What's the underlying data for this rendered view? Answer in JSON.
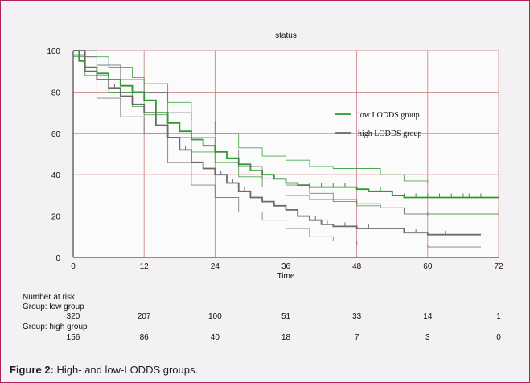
{
  "caption": {
    "label": "Figure 2:",
    "text": " High- and low-LODDS groups."
  },
  "chart_data": {
    "type": "line",
    "subtype": "kaplan-meier",
    "title": "status",
    "xlabel": "Time",
    "ylabel": "",
    "xlim": [
      0,
      72
    ],
    "ylim": [
      0,
      100
    ],
    "xticks": [
      0,
      12,
      24,
      36,
      48,
      60,
      72
    ],
    "yticks": [
      0,
      20,
      40,
      60,
      80,
      100
    ],
    "grid": true,
    "grid_color": "#c8787c",
    "legend_position": "right",
    "series": [
      {
        "name": "low LODDS group",
        "color": "#2f9a2f",
        "points": [
          [
            0,
            100
          ],
          [
            1,
            95
          ],
          [
            2,
            92
          ],
          [
            4,
            89
          ],
          [
            6,
            86
          ],
          [
            8,
            83
          ],
          [
            10,
            80
          ],
          [
            12,
            76
          ],
          [
            14,
            70
          ],
          [
            16,
            65
          ],
          [
            18,
            61
          ],
          [
            20,
            57
          ],
          [
            22,
            54
          ],
          [
            24,
            51
          ],
          [
            26,
            48
          ],
          [
            28,
            45
          ],
          [
            30,
            42
          ],
          [
            32,
            40
          ],
          [
            34,
            38
          ],
          [
            36,
            36
          ],
          [
            38,
            35
          ],
          [
            40,
            34
          ],
          [
            44,
            34
          ],
          [
            46,
            34
          ],
          [
            48,
            33
          ],
          [
            50,
            32
          ],
          [
            54,
            30
          ],
          [
            56,
            29
          ],
          [
            60,
            29
          ],
          [
            66,
            29
          ],
          [
            72,
            29
          ]
        ],
        "ci_upper": [
          [
            0,
            100
          ],
          [
            2,
            97
          ],
          [
            6,
            92
          ],
          [
            10,
            87
          ],
          [
            12,
            84
          ],
          [
            16,
            75
          ],
          [
            20,
            66
          ],
          [
            24,
            60
          ],
          [
            28,
            53
          ],
          [
            32,
            49
          ],
          [
            36,
            47
          ],
          [
            40,
            44
          ],
          [
            44,
            43
          ],
          [
            48,
            43
          ],
          [
            52,
            40
          ],
          [
            56,
            37
          ],
          [
            60,
            36
          ],
          [
            66,
            36
          ],
          [
            72,
            36
          ]
        ],
        "ci_lower": [
          [
            0,
            98
          ],
          [
            2,
            88
          ],
          [
            6,
            80
          ],
          [
            10,
            73
          ],
          [
            12,
            69
          ],
          [
            16,
            58
          ],
          [
            20,
            51
          ],
          [
            24,
            46
          ],
          [
            28,
            39
          ],
          [
            32,
            34
          ],
          [
            36,
            30
          ],
          [
            40,
            28
          ],
          [
            44,
            27
          ],
          [
            48,
            25
          ],
          [
            52,
            24
          ],
          [
            56,
            22
          ],
          [
            60,
            21
          ],
          [
            66,
            21
          ],
          [
            72,
            21
          ]
        ],
        "censor_times": [
          40,
          42,
          44,
          46,
          52,
          56,
          58,
          60,
          62,
          64,
          66,
          67,
          68,
          69
        ]
      },
      {
        "name": "high LODDS group",
        "color": "#6b6b6b",
        "points": [
          [
            0,
            100
          ],
          [
            2,
            90
          ],
          [
            4,
            86
          ],
          [
            6,
            82
          ],
          [
            8,
            78
          ],
          [
            10,
            74
          ],
          [
            12,
            70
          ],
          [
            14,
            64
          ],
          [
            16,
            58
          ],
          [
            18,
            52
          ],
          [
            20,
            46
          ],
          [
            22,
            43
          ],
          [
            24,
            40
          ],
          [
            26,
            36
          ],
          [
            28,
            32
          ],
          [
            30,
            29
          ],
          [
            32,
            27
          ],
          [
            34,
            25
          ],
          [
            36,
            23
          ],
          [
            38,
            20
          ],
          [
            40,
            18
          ],
          [
            42,
            16
          ],
          [
            44,
            15
          ],
          [
            46,
            15
          ],
          [
            48,
            14
          ],
          [
            54,
            14
          ],
          [
            56,
            12
          ],
          [
            60,
            11
          ],
          [
            64,
            11
          ],
          [
            69,
            11
          ]
        ],
        "ci_upper": [
          [
            0,
            100
          ],
          [
            4,
            93
          ],
          [
            8,
            86
          ],
          [
            12,
            80
          ],
          [
            16,
            70
          ],
          [
            20,
            58
          ],
          [
            24,
            52
          ],
          [
            28,
            44
          ],
          [
            32,
            38
          ],
          [
            36,
            35
          ],
          [
            40,
            31
          ],
          [
            44,
            28
          ],
          [
            48,
            26
          ],
          [
            52,
            24
          ],
          [
            56,
            21
          ],
          [
            60,
            20
          ],
          [
            64,
            20
          ],
          [
            69,
            20
          ]
        ],
        "ci_lower": [
          [
            0,
            97
          ],
          [
            4,
            77
          ],
          [
            8,
            68
          ],
          [
            12,
            60
          ],
          [
            16,
            46
          ],
          [
            20,
            35
          ],
          [
            24,
            29
          ],
          [
            28,
            22
          ],
          [
            32,
            18
          ],
          [
            36,
            14
          ],
          [
            40,
            10
          ],
          [
            44,
            8
          ],
          [
            48,
            6
          ],
          [
            56,
            6
          ],
          [
            60,
            5
          ],
          [
            64,
            5
          ],
          [
            69,
            5
          ]
        ],
        "censor_times": [
          4,
          7,
          10,
          14,
          16,
          19,
          22,
          25,
          27,
          29,
          32,
          34,
          38,
          41,
          43,
          46,
          50,
          58,
          63
        ]
      }
    ],
    "risk_table": {
      "title": "Number at risk",
      "groups": [
        {
          "label": "Group: low group",
          "values": [
            "320",
            "207",
            "100",
            "51",
            "33",
            "14",
            "1"
          ]
        },
        {
          "label": "Group: high group",
          "values": [
            "156",
            "86",
            "40",
            "18",
            "7",
            "3",
            "0"
          ]
        }
      ]
    }
  }
}
